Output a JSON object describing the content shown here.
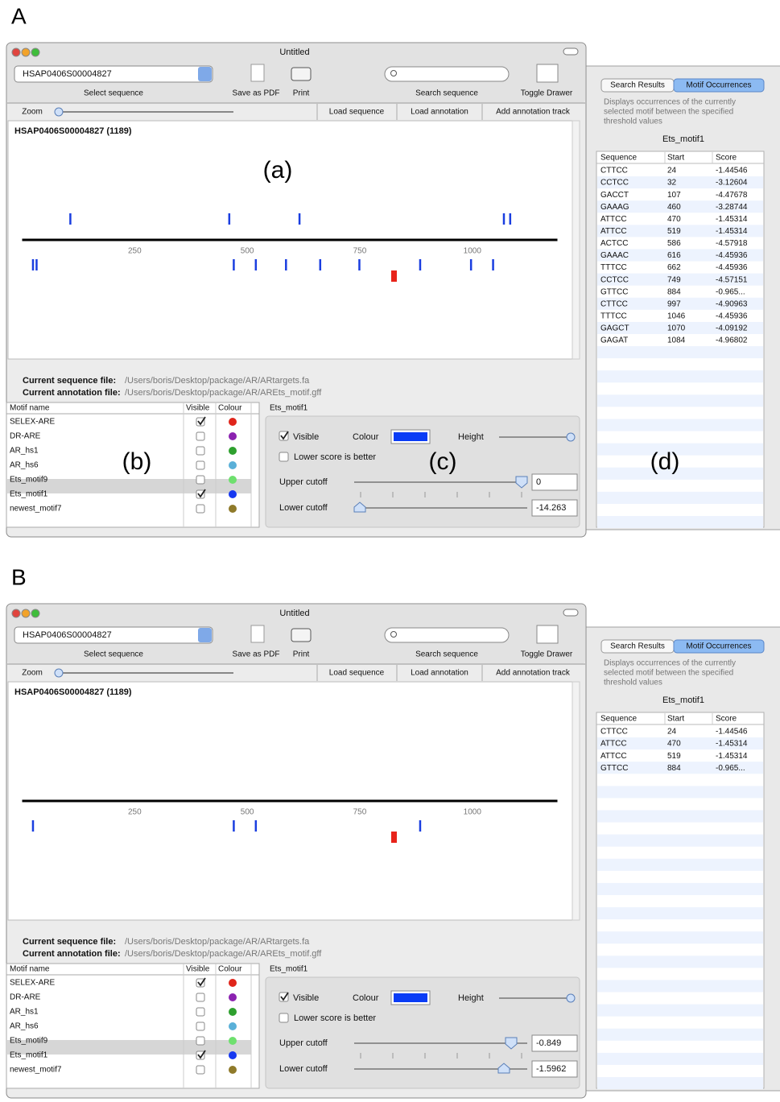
{
  "panels": [
    {
      "label": "A",
      "title": "Untitled",
      "sequence_id": "HSAP0406S00004827",
      "toolbar": {
        "select": "Select sequence",
        "pdf": "Save as PDF",
        "print": "Print",
        "search": "Search sequence",
        "drawer": "Toggle Drawer"
      },
      "zoom": "Zoom",
      "buttons": [
        "Load sequence",
        "Load annotation",
        "Add annotation track"
      ],
      "view": {
        "heading": "HSAP0406S00004827 (1189)",
        "callout": "(a)",
        "xlim": [
          0,
          1189
        ],
        "xticks": [
          250,
          500,
          750,
          1000
        ],
        "forward_marks": [
          107,
          460,
          616,
          1070,
          1084
        ],
        "reverse_marks": [
          24,
          32,
          470,
          519,
          586,
          662,
          749,
          884,
          997,
          1046
        ],
        "red_marks": [
          826
        ],
        "mark_color": "#1a3ee0",
        "red_color": "#e8231a"
      },
      "files": [
        {
          "label": "Current sequence file:",
          "path": "/Users/boris/Desktop/package/AR/ARtargets.fa"
        },
        {
          "label": "Current annotation file:",
          "path": "/Users/boris/Desktop/package/AR/AREts_motif.gff"
        }
      ],
      "motifs": {
        "callout": "(b)",
        "columns": [
          "Motif name",
          "Visible",
          "Colour"
        ],
        "selected": 5,
        "rows": [
          {
            "name": "SELEX-ARE",
            "visible": true,
            "color": "#e0251b"
          },
          {
            "name": "DR-ARE",
            "visible": false,
            "color": "#8b22b0"
          },
          {
            "name": "AR_hs1",
            "visible": false,
            "color": "#2ea02e"
          },
          {
            "name": "AR_hs6",
            "visible": false,
            "color": "#5ab0d8"
          },
          {
            "name": "Ets_motif9",
            "visible": false,
            "color": "#6ee06e"
          },
          {
            "name": "Ets_motif1",
            "visible": true,
            "color": "#1638f0"
          },
          {
            "name": "newest_motif7",
            "visible": false,
            "color": "#8f7a2a"
          }
        ]
      },
      "editor": {
        "title": "Ets_motif1",
        "callout": "(c)",
        "visible_label": "Visible",
        "visible": true,
        "colour_label": "Colour",
        "colour": "#0a3cf5",
        "height_label": "Height",
        "lower_better": "Lower score is better",
        "lower_better_checked": false,
        "upper_label": "Upper cutoff",
        "upper_value": "0",
        "lower_label": "Lower cutoff",
        "lower_value": "-14.263"
      },
      "drawer": {
        "tabs": [
          "Search Results",
          "Motif Occurrences"
        ],
        "description": [
          "Displays occurrences of the currently",
          "selected motif between the specified",
          "threshold values"
        ],
        "motif": "Ets_motif1",
        "callout": "(d)",
        "columns": [
          "Sequence",
          "Start",
          "Score"
        ],
        "rows": [
          [
            "CTTCC",
            24,
            "-1.44546"
          ],
          [
            "CCTCC",
            32,
            "-3.12604"
          ],
          [
            "GACCT",
            107,
            "-4.47678"
          ],
          [
            "GAAAG",
            460,
            "-3.28744"
          ],
          [
            "ATTCC",
            470,
            "-1.45314"
          ],
          [
            "ATTCC",
            519,
            "-1.45314"
          ],
          [
            "ACTCC",
            586,
            "-4.57918"
          ],
          [
            "GAAAC",
            616,
            "-4.45936"
          ],
          [
            "TTTCC",
            662,
            "-4.45936"
          ],
          [
            "CCTCC",
            749,
            "-4.57151"
          ],
          [
            "GTTCC",
            884,
            "-0.965..."
          ],
          [
            "CTTCC",
            997,
            "-4.90963"
          ],
          [
            "TTTCC",
            1046,
            "-4.45936"
          ],
          [
            "GAGCT",
            1070,
            "-4.09192"
          ],
          [
            "GAGAT",
            1084,
            "-4.96802"
          ]
        ]
      }
    },
    {
      "label": "B",
      "title": "Untitled",
      "sequence_id": "HSAP0406S00004827",
      "toolbar": {
        "select": "Select sequence",
        "pdf": "Save as PDF",
        "print": "Print",
        "search": "Search sequence",
        "drawer": "Toggle Drawer"
      },
      "zoom": "Zoom",
      "buttons": [
        "Load sequence",
        "Load annotation",
        "Add annotation track"
      ],
      "view": {
        "heading": "HSAP0406S00004827 (1189)",
        "xlim": [
          0,
          1189
        ],
        "xticks": [
          250,
          500,
          750,
          1000
        ],
        "forward_marks": [],
        "reverse_marks": [
          24,
          470,
          519,
          884
        ],
        "red_marks": [
          826
        ],
        "mark_color": "#1a3ee0",
        "red_color": "#e8231a"
      },
      "files": [
        {
          "label": "Current sequence file:",
          "path": "/Users/boris/Desktop/package/AR/ARtargets.fa"
        },
        {
          "label": "Current annotation file:",
          "path": "/Users/boris/Desktop/package/AR/AREts_motif.gff"
        }
      ],
      "motifs": {
        "columns": [
          "Motif name",
          "Visible",
          "Colour"
        ],
        "selected": 5,
        "rows": [
          {
            "name": "SELEX-ARE",
            "visible": true,
            "color": "#e0251b"
          },
          {
            "name": "DR-ARE",
            "visible": false,
            "color": "#8b22b0"
          },
          {
            "name": "AR_hs1",
            "visible": false,
            "color": "#2ea02e"
          },
          {
            "name": "AR_hs6",
            "visible": false,
            "color": "#5ab0d8"
          },
          {
            "name": "Ets_motif9",
            "visible": false,
            "color": "#6ee06e"
          },
          {
            "name": "Ets_motif1",
            "visible": true,
            "color": "#1638f0"
          },
          {
            "name": "newest_motif7",
            "visible": false,
            "color": "#8f7a2a"
          }
        ]
      },
      "editor": {
        "title": "Ets_motif1",
        "visible_label": "Visible",
        "visible": true,
        "colour_label": "Colour",
        "colour": "#0a3cf5",
        "height_label": "Height",
        "lower_better": "Lower score is better",
        "lower_better_checked": false,
        "upper_label": "Upper cutoff",
        "upper_value": "-0.849",
        "lower_label": "Lower cutoff",
        "lower_value": "-1.5962"
      },
      "drawer": {
        "tabs": [
          "Search Results",
          "Motif Occurrences"
        ],
        "description": [
          "Displays occurrences of the currently",
          "selected motif between the specified",
          "threshold values"
        ],
        "motif": "Ets_motif1",
        "columns": [
          "Sequence",
          "Start",
          "Score"
        ],
        "rows": [
          [
            "CTTCC",
            24,
            "-1.44546"
          ],
          [
            "ATTCC",
            470,
            "-1.45314"
          ],
          [
            "ATTCC",
            519,
            "-1.45314"
          ],
          [
            "GTTCC",
            884,
            "-0.965..."
          ]
        ]
      }
    }
  ]
}
